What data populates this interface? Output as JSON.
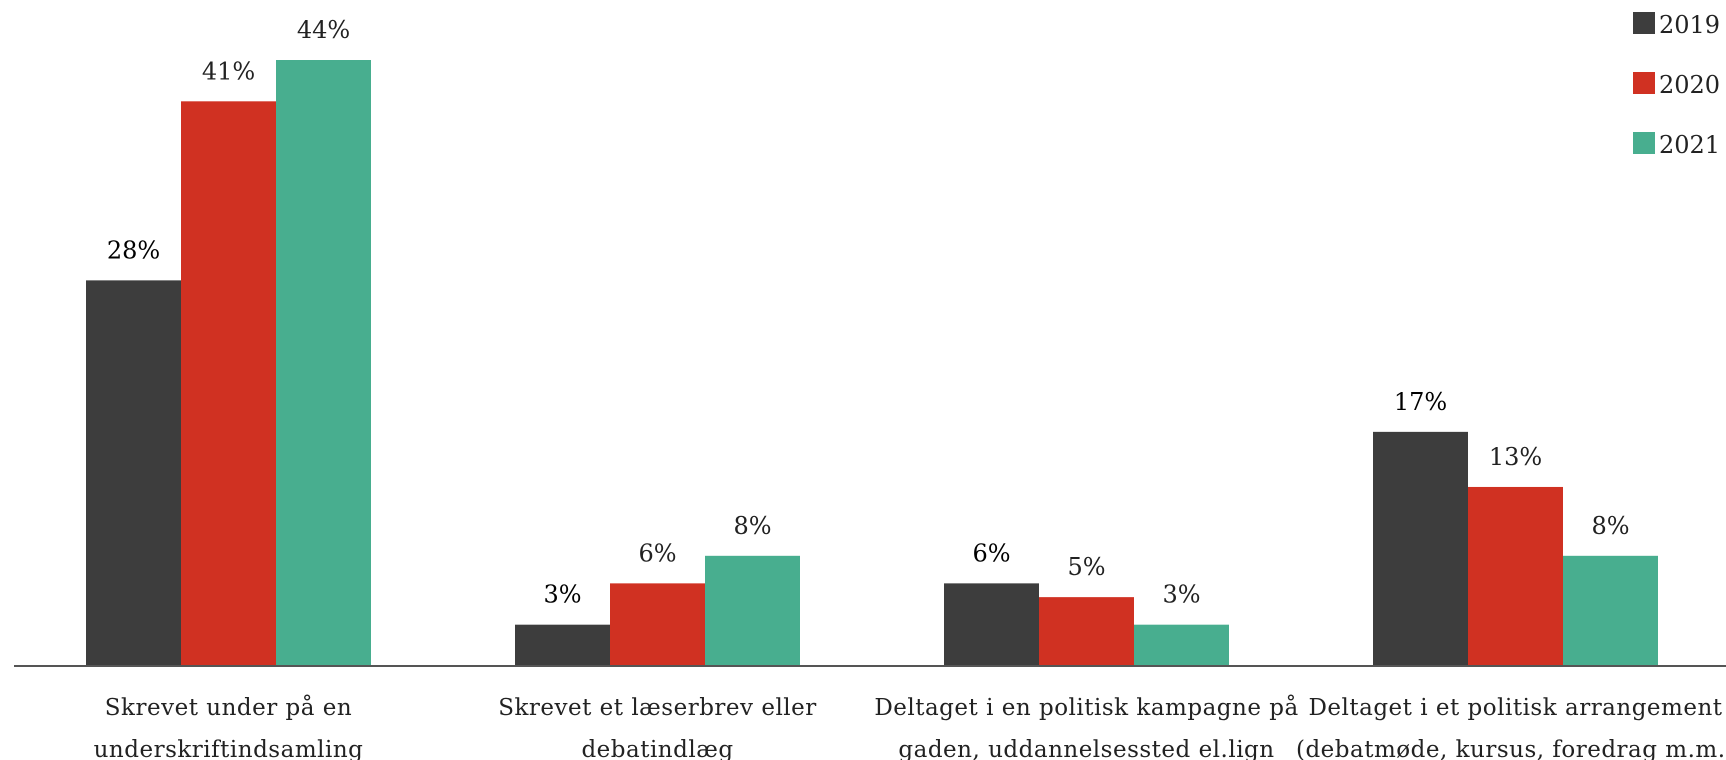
{
  "chart_data": {
    "type": "bar",
    "categories": [
      [
        "Skrevet under på en",
        "underskriftindsamling"
      ],
      [
        "Skrevet et læserbrev eller",
        "debatindlæg"
      ],
      [
        "Deltaget i en politisk kampagne på",
        "gaden, uddannelsessted el.lign"
      ],
      [
        "Deltaget i et politisk arrangement",
        "(debatmøde, kursus, foredrag m.m.)"
      ]
    ],
    "series": [
      {
        "name": "2019",
        "color": "#3d3d3d",
        "values": [
          28,
          3,
          6,
          17
        ],
        "labels": [
          "28%",
          "3%",
          "6%",
          "17%"
        ]
      },
      {
        "name": "2020",
        "color": "#d03122",
        "values": [
          41,
          6,
          5,
          13
        ],
        "labels": [
          "41%",
          "6%",
          "5%",
          "13%"
        ]
      },
      {
        "name": "2021",
        "color": "#48ae8f",
        "values": [
          44,
          8,
          3,
          8
        ],
        "labels": [
          "44%",
          "8%",
          "3%",
          "8%"
        ]
      }
    ],
    "ylim": [
      0,
      44
    ],
    "grid": false,
    "legend_position": "top-right",
    "title": "",
    "xlabel": "",
    "ylabel": ""
  }
}
